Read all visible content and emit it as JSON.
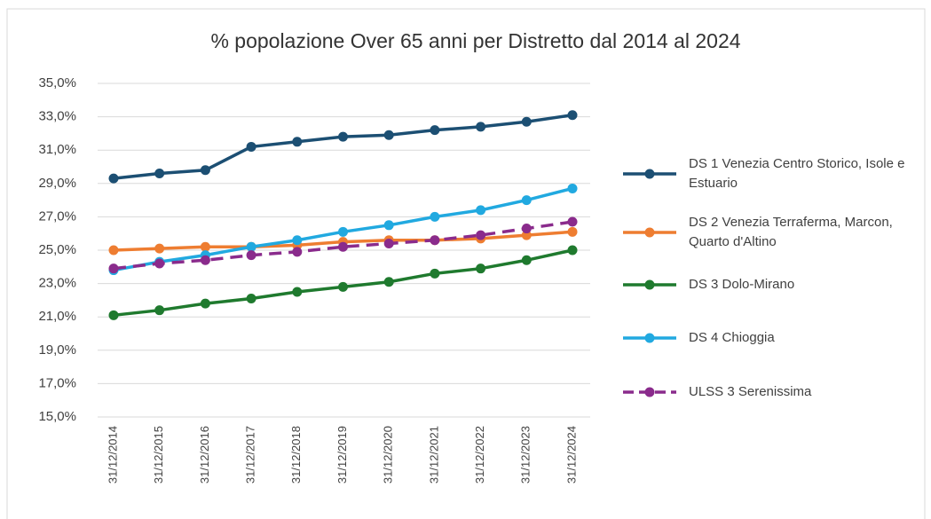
{
  "chart_data": {
    "type": "line",
    "title": "% popolazione Over 65 anni per Distretto dal 2014 al 2024",
    "categories": [
      "31/12/2014",
      "31/12/2015",
      "31/12/2016",
      "31/12/2017",
      "31/12/2018",
      "31/12/2019",
      "31/12/2020",
      "31/12/2021",
      "31/12/2022",
      "31/12/2023",
      "31/12/2024"
    ],
    "series": [
      {
        "name": "DS 1 Venezia Centro Storico, Isole e Estuario",
        "color": "#1c4f73",
        "values": [
          29.3,
          29.6,
          29.8,
          31.2,
          31.5,
          31.8,
          31.9,
          32.2,
          32.4,
          32.7,
          33.1
        ]
      },
      {
        "name": "DS 2 Venezia Terraferma, Marcon, Quarto d'Altino",
        "color": "#ee7d31",
        "values": [
          25.0,
          25.1,
          25.2,
          25.2,
          25.3,
          25.5,
          25.6,
          25.6,
          25.7,
          25.9,
          26.1
        ]
      },
      {
        "name": "DS 3 Dolo-Mirano",
        "color": "#1f7a2e",
        "values": [
          21.1,
          21.4,
          21.8,
          22.1,
          22.5,
          22.8,
          23.1,
          23.6,
          23.9,
          24.4,
          25.0
        ]
      },
      {
        "name": "DS 4 Chioggia",
        "color": "#21a9e0",
        "values": [
          23.8,
          24.3,
          24.7,
          25.2,
          25.6,
          26.1,
          26.5,
          27.0,
          27.4,
          28.0,
          28.7
        ]
      },
      {
        "name": "ULSS 3 Serenissima",
        "color": "#8a2b8c",
        "dashed": true,
        "values": [
          23.9,
          24.2,
          24.4,
          24.7,
          24.9,
          25.2,
          25.4,
          25.6,
          25.9,
          26.3,
          26.7
        ]
      }
    ],
    "ylim": [
      15,
      35
    ],
    "yticks": [
      {
        "value": 15,
        "label": "15,0%"
      },
      {
        "value": 17,
        "label": "17,0%"
      },
      {
        "value": 19,
        "label": "19,0%"
      },
      {
        "value": 21,
        "label": "21,0%"
      },
      {
        "value": 23,
        "label": "23,0%"
      },
      {
        "value": 25,
        "label": "25,0%"
      },
      {
        "value": 27,
        "label": "27,0%"
      },
      {
        "value": 29,
        "label": "29,0%"
      },
      {
        "value": 31,
        "label": "31,0%"
      },
      {
        "value": 33,
        "label": "33,0%"
      },
      {
        "value": 35,
        "label": "35,0%"
      }
    ],
    "grid": true,
    "legend": "right"
  }
}
